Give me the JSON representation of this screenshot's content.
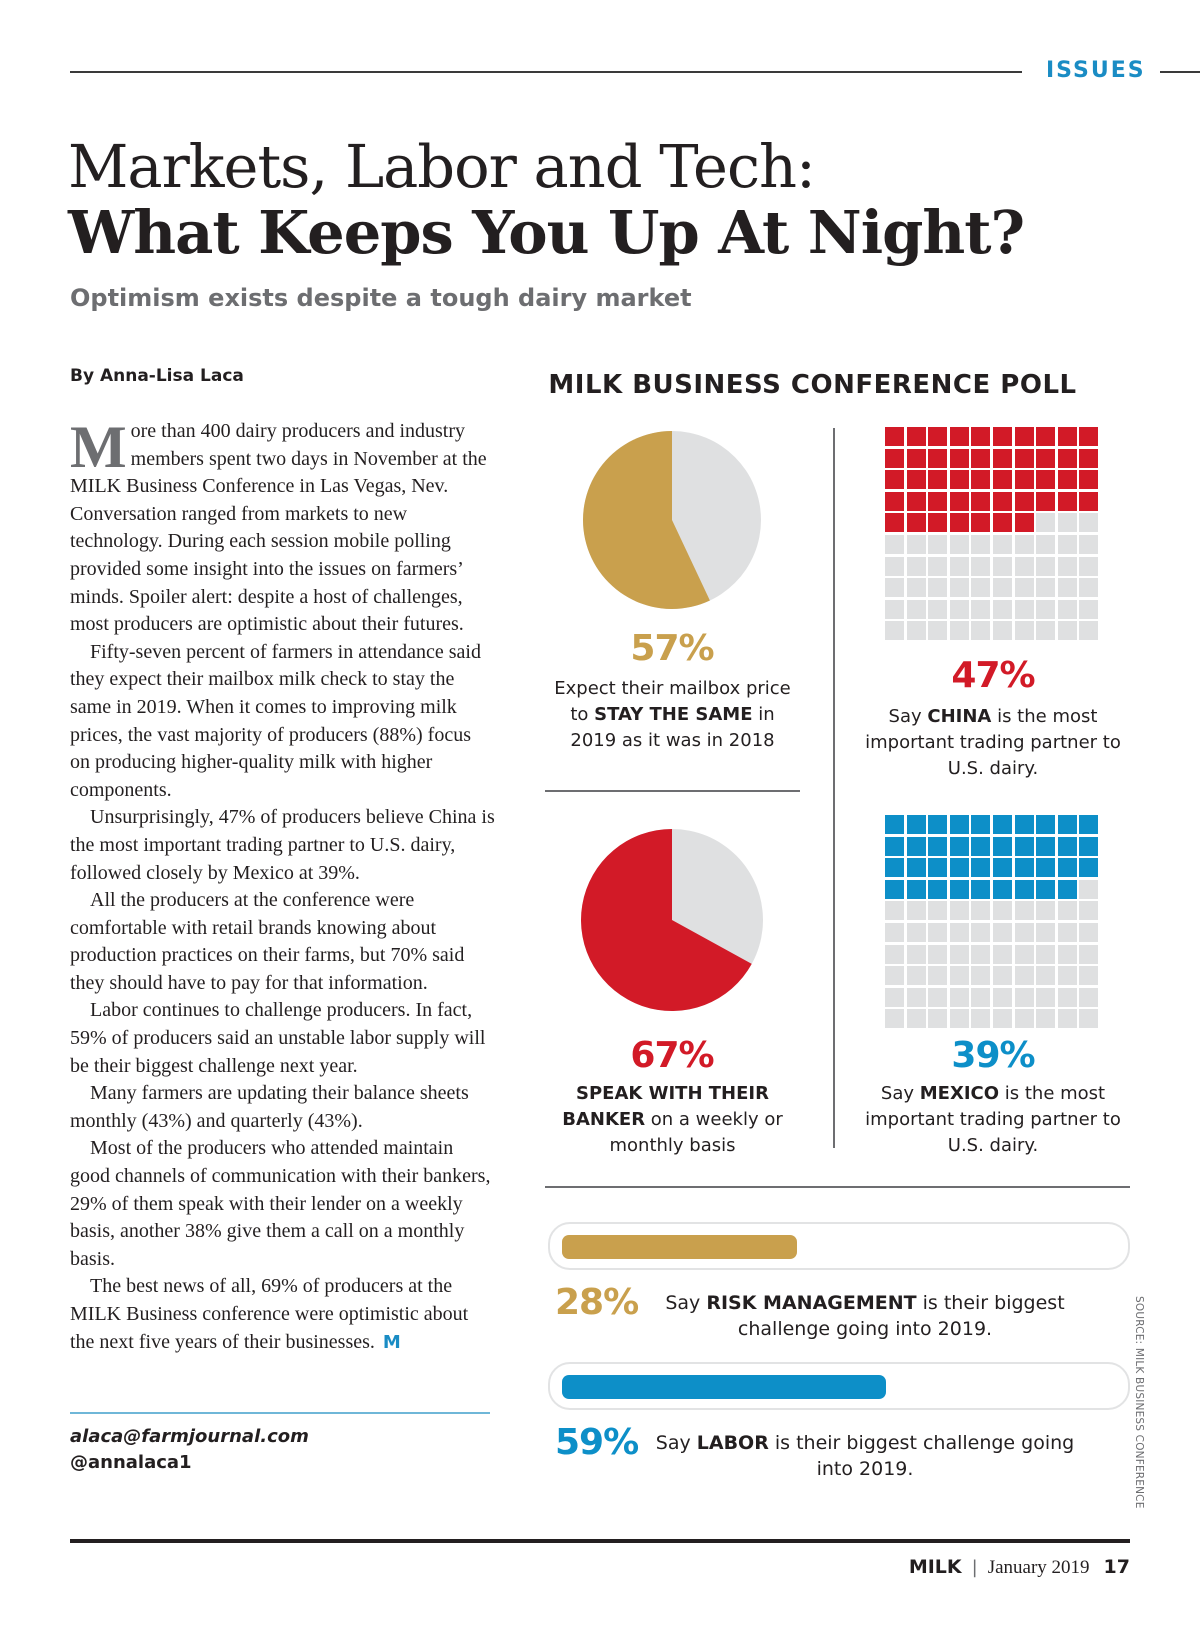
{
  "header": {
    "section": "ISSUES"
  },
  "headline": {
    "line1": "Markets, Labor and Tech:",
    "line2": "What Keeps You Up At Night?",
    "subtitle": "Optimism exists despite a tough dairy market"
  },
  "article": {
    "byline": "By Anna-Lisa Laca",
    "dropcap": "M",
    "paragraphs": [
      "ore than 400 dairy producers and industry members spent two days in November at the MILK Business Conference in Las Vegas, Nev. Conversation ranged from markets to new technology. During each session mobile polling provided some insight into the issues on farmers’ minds. Spoiler alert: despite a host of challenges, most producers are optimistic about their futures.",
      "Fifty-seven percent of farmers in attendance said they expect their mailbox milk check to stay the same in 2019. When it comes to improving milk prices, the vast majority of producers (88%) focus on producing higher-quality milk with higher components.",
      "Unsurprisingly, 47% of producers believe China is the most important trading partner to U.S. dairy, followed closely by Mexico at 39%.",
      "All the producers at the conference were comfortable with retail brands knowing about production practices on their farms, but 70% said they should have to pay for that information.",
      "Labor continues to challenge producers. In fact, 59% of producers said an unstable labor supply will be their biggest challenge next year.",
      "Many farmers are updating their balance sheets monthly (43%) and quarterly (43%).",
      "Most of the producers who attended maintain good channels of communication with their bankers, 29% of them speak with their lender on a weekly basis, another 38% give them a call on a monthly basis.",
      "The best news of all, 69% of producers at the MILK Business conference were optimistic about the next five years of their businesses."
    ],
    "end_mark": "M",
    "contact_email": "alaca@farmjournal.com",
    "contact_handle": "@annalaca1"
  },
  "poll": {
    "title": "MILK BUSINESS CONFERENCE POLL",
    "source": "SOURCE: MILK BUSINESS CONFERENCE",
    "colors": {
      "gold": "#c9a04d",
      "red": "#d21a27",
      "blue": "#0d8fc8",
      "gray": "#dfe0e1"
    },
    "stay_same": {
      "pct_label": "57%",
      "caption_pre": "Expect their mailbox price to ",
      "caption_bold": "STAY THE SAME",
      "caption_post": " in 2019 as it was in 2018"
    },
    "china": {
      "pct_label": "47%",
      "caption_pre": "Say ",
      "caption_bold": "CHINA",
      "caption_post": " is the most important trading partner to U.S. dairy."
    },
    "banker": {
      "pct_label": "67%",
      "caption_bold": "SPEAK WITH THEIR BANKER",
      "caption_post": " on a weekly or monthly basis"
    },
    "mexico": {
      "pct_label": "39%",
      "caption_pre": "Say ",
      "caption_bold": "MEXICO",
      "caption_post": " is the most important trading partner to U.S. dairy."
    },
    "risk": {
      "pct_label": "28%",
      "caption_pre": "Say ",
      "caption_bold": "RISK MANAGEMENT",
      "caption_post": " is their biggest challenge going into 2019."
    },
    "labor": {
      "pct_label": "59%",
      "caption_pre": "Say ",
      "caption_bold": "LABOR",
      "caption_post": " is their biggest challenge going into 2019."
    }
  },
  "chart_data": [
    {
      "type": "pie",
      "title": "Expect mailbox price to stay the same in 2019",
      "values": [
        57,
        43
      ],
      "labels": [
        "Stay the same",
        "Other"
      ],
      "colors": [
        "#c9a04d",
        "#dfe0e1"
      ]
    },
    {
      "type": "heatmap",
      "subtype": "waffle",
      "title": "China is most important trading partner",
      "grid": [
        10,
        10
      ],
      "filled": 47,
      "total": 100,
      "color": "#d21a27"
    },
    {
      "type": "pie",
      "title": "Speak with their banker weekly or monthly",
      "values": [
        67,
        33
      ],
      "labels": [
        "Speak with banker",
        "Other"
      ],
      "colors": [
        "#d21a27",
        "#dfe0e1"
      ]
    },
    {
      "type": "heatmap",
      "subtype": "waffle",
      "title": "Mexico is most important trading partner",
      "grid": [
        10,
        10
      ],
      "filled": 39,
      "total": 100,
      "color": "#0d8fc8"
    },
    {
      "type": "bar",
      "title": "Biggest challenge going into 2019",
      "categories": [
        "Risk management",
        "Labor"
      ],
      "values": [
        28,
        59
      ],
      "ylim": [
        0,
        100
      ],
      "colors": [
        "#c9a04d",
        "#0d8fc8"
      ]
    }
  ],
  "footer": {
    "brand": "MILK",
    "separator": "|",
    "date": "January 2019",
    "page": "17"
  }
}
